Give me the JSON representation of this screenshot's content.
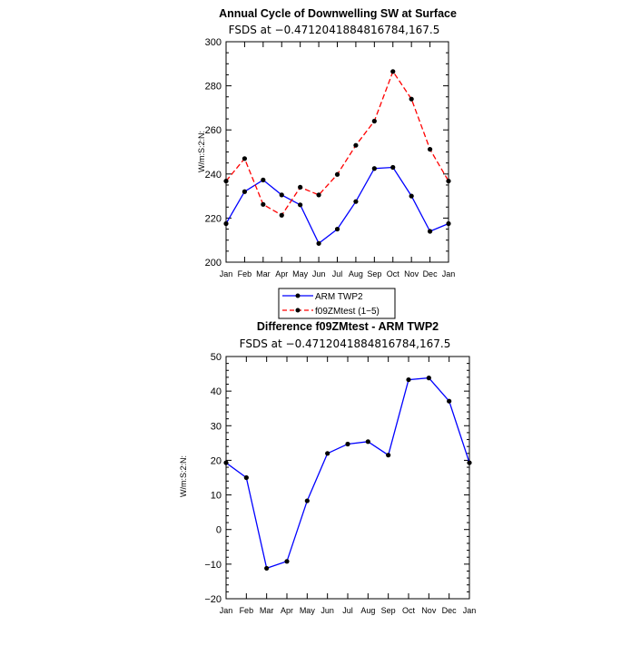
{
  "chart_data": [
    {
      "type": "line",
      "title": "Annual Cycle of Downwelling SW at Surface",
      "subtitle": "FSDS at −0.4712041884816784,167.5",
      "xlabel": "",
      "ylabel": "W/m:S:2:N:",
      "categories": [
        "Jan",
        "Feb",
        "Mar",
        "Apr",
        "May",
        "Jun",
        "Jul",
        "Aug",
        "Sep",
        "Oct",
        "Nov",
        "Dec",
        "Jan"
      ],
      "yticks": [
        "200",
        "220",
        "240",
        "260",
        "280",
        "300"
      ],
      "ylim": [
        200,
        300
      ],
      "series": [
        {
          "name": "ARM TWP2",
          "color": "#0000ff",
          "dashed": false,
          "values": [
            217.5,
            232,
            237.3,
            230.5,
            226,
            208.5,
            215,
            227.5,
            242.5,
            243,
            230,
            214,
            217.5
          ]
        },
        {
          "name": "f09ZMtest (1−5)",
          "color": "#ff0000",
          "dashed": true,
          "values": [
            236.8,
            247,
            226.2,
            221.3,
            234,
            230.5,
            239.8,
            253,
            264,
            286.5,
            274,
            251.2,
            236.8
          ]
        }
      ],
      "legend": [
        "ARM TWP2",
        "f09ZMtest (1−5)"
      ]
    },
    {
      "type": "line",
      "title": "Difference f09ZMtest - ARM TWP2",
      "subtitle": "FSDS at −0.4712041884816784,167.5",
      "xlabel": "",
      "ylabel": "W/m:S:2:N:",
      "categories": [
        "Jan",
        "Feb",
        "Mar",
        "Apr",
        "May",
        "Jun",
        "Jul",
        "Aug",
        "Sep",
        "Oct",
        "Nov",
        "Dec",
        "Jan"
      ],
      "yticks": [
        "−20",
        "−10",
        "0",
        "10",
        "20",
        "30",
        "40",
        "50"
      ],
      "ylim": [
        -20,
        50
      ],
      "series": [
        {
          "name": "Difference",
          "color": "#0000ff",
          "dashed": false,
          "values": [
            19.3,
            15,
            -11.2,
            -9.2,
            8.3,
            22,
            24.7,
            25.4,
            21.5,
            43.3,
            43.8,
            37.1,
            19.3
          ]
        }
      ]
    }
  ]
}
